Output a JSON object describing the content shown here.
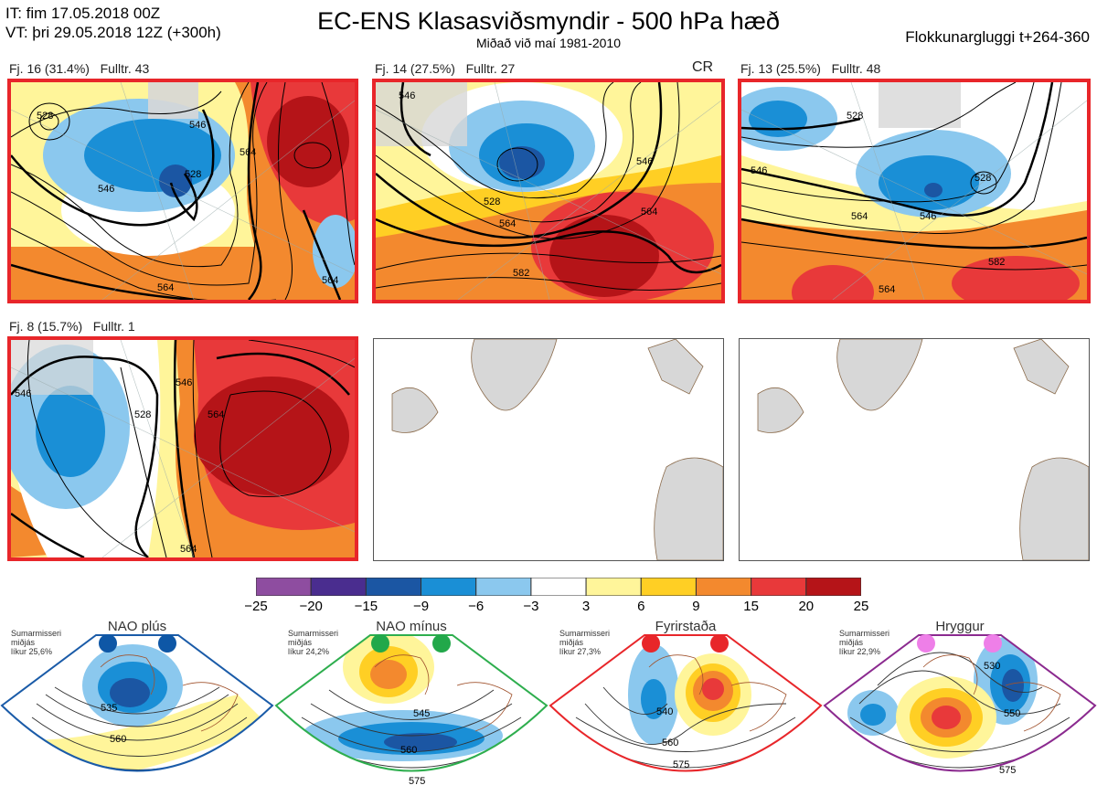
{
  "header": {
    "it_line": "IT: fim 17.05.2018 00Z",
    "vt_line": "VT: þri 29.05.2018 12Z  (+300h)",
    "title": "EC-ENS Klasasviðsmyndir - 500 hPa hæð",
    "subtitle": "Miðað við maí 1981-2010",
    "window": "Flokkunargluggi t+264-360"
  },
  "panels": [
    {
      "label": "Fj. 16 (31.4%)   Fulltr. 43",
      "cr": "",
      "contours": [
        "528",
        "546",
        "528",
        "546",
        "564",
        "564",
        "564"
      ]
    },
    {
      "label": "Fj. 14 (27.5%)   Fulltr. 27",
      "cr": "CR",
      "contours": [
        "546",
        "528",
        "546",
        "564",
        "564",
        "582"
      ]
    },
    {
      "label": "Fj. 13 (25.5%)   Fulltr. 48",
      "cr": "",
      "contours": [
        "528",
        "546",
        "528",
        "546",
        "564",
        "564",
        "582"
      ]
    },
    {
      "label": "Fj. 8 (15.7%)   Fulltr. 1",
      "cr": "",
      "contours": [
        "546",
        "528",
        "546",
        "564",
        "564"
      ]
    }
  ],
  "colorbar": {
    "ticks": [
      "−25",
      "−20",
      "−15",
      "−9",
      "−6",
      "−3",
      "3",
      "6",
      "9",
      "15",
      "20",
      "25"
    ],
    "colors": [
      "#8e4da0",
      "#4a2d8f",
      "#1b56a3",
      "#1a8fd6",
      "#8bc8ee",
      "#ffffff",
      "#fff59a",
      "#ffcf24",
      "#f3892e",
      "#e8393a",
      "#b51418"
    ]
  },
  "regimes": [
    {
      "name": "NAO plús",
      "season": "Sumarmisseri",
      "word": "miðjás",
      "likur": "líkur 25,6%",
      "color": "#1a5ba8",
      "dot": "#0e57a6",
      "contours": [
        "535",
        "560"
      ]
    },
    {
      "name": "NAO mínus",
      "season": "Sumarmisseri",
      "word": "miðjás",
      "likur": "líkur 24,2%",
      "color": "#2eae4e",
      "dot": "#22a84a",
      "contours": [
        "545",
        "560",
        "575"
      ]
    },
    {
      "name": "Fyrirstaða",
      "season": "Sumarmisseri",
      "word": "miðjás",
      "likur": "líkur 27,3%",
      "color": "#e8262a",
      "dot": "#e8262a",
      "contours": [
        "540",
        "560",
        "575"
      ]
    },
    {
      "name": "Hryggur",
      "season": "Sumarmisseri",
      "word": "miðjás",
      "likur": "líkur 22,9%",
      "color": "#8b2a8f",
      "dot": "#ee7fe8",
      "contours": [
        "530",
        "550",
        "575"
      ]
    }
  ]
}
